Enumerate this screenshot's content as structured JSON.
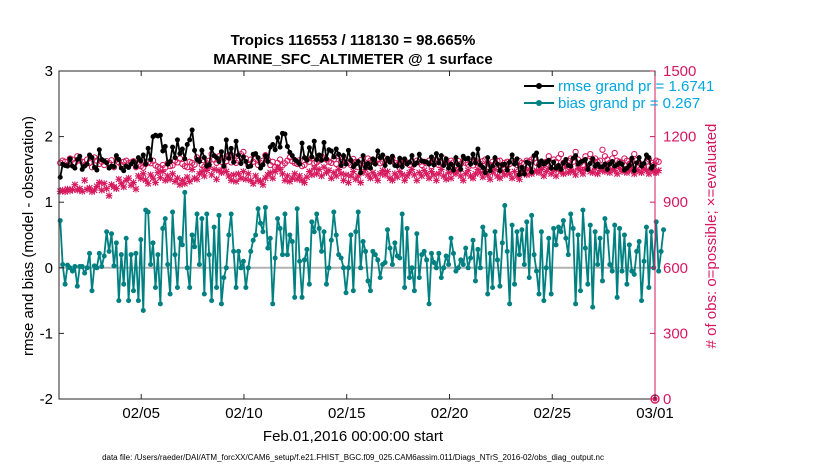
{
  "chart_data": {
    "type": "line",
    "title_line1": "Tropics 116553 / 118130 = 98.665%",
    "title_line2": "MARINE_SFC_ALTIMETER @ 1 surface",
    "xlabel": "Feb.01,2016 00:00:00 start",
    "ylabel_left": "rmse and bias (model - observation)",
    "ylabel_right": "# of obs: o=possible; ×=evaluated",
    "footer": "data file: /Users/raeder/DAI/ATM_forcXX/CAM6_setup/f.e21.FHIST_BGC.f09_025.CAM6assim.011/Diags_NTrS_2016-02/obs_diag_output.nc",
    "x_range": [
      "2016-02-01",
      "2016-03-01"
    ],
    "x_ticks": [
      "02/05",
      "02/10",
      "02/15",
      "02/20",
      "02/25",
      "03/01"
    ],
    "y_left": {
      "range": [
        -2,
        3
      ],
      "ticks": [
        "-2",
        "-1",
        "0",
        "1",
        "2",
        "3"
      ]
    },
    "y_right": {
      "range": [
        0,
        1500
      ],
      "ticks": [
        "0",
        "300",
        "600",
        "900",
        "1200",
        "1500"
      ]
    },
    "legend": {
      "position": "top-right",
      "entries": [
        "rmse grand pr = 1.6741",
        "bias grand pr = 0.267"
      ]
    },
    "colors": {
      "rmse": "#000000",
      "bias": "#008080",
      "obs": "#d6185d",
      "zero_line": "#b3b3b3"
    },
    "rmse": [
      1.38,
      1.58,
      1.56,
      1.55,
      1.66,
      1.55,
      1.52,
      1.65,
      1.7,
      1.5,
      1.55,
      1.58,
      1.72,
      1.68,
      1.53,
      1.49,
      1.8,
      1.65,
      1.63,
      1.6,
      1.52,
      1.55,
      1.54,
      1.71,
      1.65,
      1.52,
      1.48,
      1.55,
      1.53,
      1.58,
      1.62,
      1.54,
      1.68,
      1.63,
      1.72,
      1.58,
      1.82,
      1.65,
      2.0,
      2.02,
      2.01,
      2.02,
      1.78,
      1.85,
      1.58,
      1.62,
      1.84,
      1.68,
      1.95,
      1.74,
      1.81,
      1.66,
      1.88,
      1.95,
      2.1,
      1.79,
      1.65,
      1.62,
      1.79,
      1.68,
      1.55,
      1.57,
      1.82,
      1.71,
      1.68,
      1.62,
      1.77,
      1.55,
      1.95,
      1.67,
      1.82,
      1.61,
      1.93,
      1.72,
      1.59,
      1.69,
      1.62,
      1.54,
      1.55,
      1.73,
      1.74,
      1.68,
      1.52,
      1.57,
      1.71,
      1.62,
      1.84,
      1.88,
      1.8,
      1.98,
      1.84,
      2.05,
      2.04,
      1.85,
      1.76,
      1.71,
      1.65,
      1.62,
      1.58,
      1.9,
      1.68,
      1.64,
      1.83,
      1.69,
      1.93,
      1.65,
      1.72,
      1.64,
      1.91,
      1.66,
      1.8,
      1.78,
      1.69,
      1.81,
      1.73,
      1.56,
      1.71,
      1.58,
      1.79,
      1.64,
      1.54,
      1.58,
      1.62,
      1.45,
      1.71,
      1.53,
      1.59,
      1.52,
      1.66,
      1.58,
      1.78,
      1.68,
      1.72,
      1.56,
      1.67,
      1.61,
      1.7,
      1.56,
      1.55,
      1.67,
      1.54,
      1.66,
      1.58,
      1.61,
      1.71,
      1.57,
      1.6,
      1.73,
      1.63,
      1.62,
      1.61,
      1.58,
      1.69,
      1.57,
      1.74,
      1.6,
      1.71,
      1.56,
      1.66,
      1.52,
      1.58,
      1.49,
      1.68,
      1.57,
      1.5,
      1.7,
      1.66,
      1.67,
      1.58,
      1.73,
      1.6,
      1.81,
      1.57,
      1.53,
      1.45,
      1.68,
      1.48,
      1.55,
      1.68,
      1.58,
      1.48,
      1.57,
      1.58,
      1.49,
      1.61,
      1.72,
      1.58,
      1.66,
      1.42,
      1.53,
      1.43,
      1.61,
      1.59,
      1.46,
      1.71,
      1.75,
      1.56,
      1.63,
      1.58,
      1.61,
      1.64,
      1.52,
      1.61,
      1.52,
      1.56,
      1.5,
      1.6,
      1.65,
      1.56,
      1.55,
      1.67,
      1.71,
      1.58,
      1.61,
      1.63,
      1.65,
      1.5,
      1.59,
      1.66,
      1.55,
      1.58,
      1.54,
      1.54,
      1.58,
      1.5,
      1.58,
      1.62,
      1.55,
      1.57,
      1.6,
      1.58,
      1.49,
      1.52,
      1.56,
      1.67,
      1.48,
      1.6,
      1.68,
      1.55,
      1.59,
      1.72,
      1.68,
      1.52,
      1.55
    ],
    "bias": [
      0.72,
      0.05,
      -0.25,
      0.04,
      0.0,
      -0.05,
      0.02,
      -0.28,
      0.02,
      0.02,
      -0.08,
      0.0,
      0.22,
      -0.35,
      0.03,
      0.0,
      0.22,
      0.02,
      0.18,
      0.55,
      0.25,
      0.52,
      0.03,
      0.38,
      -0.5,
      0.2,
      -0.25,
      0.45,
      -0.5,
      0.2,
      -0.35,
      0.22,
      -0.5,
      0.43,
      -0.65,
      0.88,
      0.85,
      0.05,
      0.38,
      -0.3,
      0.2,
      -0.55,
      0.6,
      0.75,
      0.05,
      -0.4,
      0.85,
      0.2,
      -0.3,
      0.45,
      0.35,
      1.15,
      0.0,
      -0.3,
      0.5,
      0.32,
      0.82,
      0.05,
      0.75,
      -0.4,
      0.82,
      0.2,
      -0.5,
      0.62,
      -0.3,
      0.8,
      -0.55,
      -0.15,
      0.0,
      0.5,
      0.82,
      0.25,
      -0.3,
      0.25,
      0.0,
      0.1,
      -0.3,
      0.0,
      0.25,
      0.42,
      0.5,
      0.9,
      0.68,
      0.55,
      0.92,
      0.3,
      0.45,
      -0.55,
      0.15,
      0.75,
      0.6,
      0.2,
      0.82,
      0.2,
      0.5,
      0.4,
      -0.45,
      0.9,
      0.1,
      -0.45,
      0.12,
      0.28,
      -0.25,
      0.7,
      0.55,
      0.82,
      0.6,
      0.25,
      0.55,
      -0.25,
      0.0,
      0.42,
      0.85,
      0.5,
      0.2,
      0.15,
      0.0,
      -0.38,
      0.0,
      0.5,
      -0.35,
      0.55,
      0.85,
      0.0,
      0.4,
      0.25,
      -0.2,
      -0.35,
      0.25,
      0.2,
      0.12,
      -0.15,
      0.05,
      0.08,
      0.58,
      0.3,
      0.05,
      0.38,
      0.18,
      0.15,
      0.82,
      -0.3,
      0.6,
      -0.15,
      0.0,
      -0.35,
      0.52,
      -0.15,
      0.2,
      0.25,
      0.12,
      -0.55,
      0.22,
      0.08,
      0.0,
      0.22,
      -0.15,
      0.0,
      0.18,
      0.05,
      0.45,
      0.22,
      -0.05,
      0.0,
      0.12,
      0.05,
      0.3,
      0.0,
      0.15,
      0.42,
      -0.2,
      0.28,
      0.0,
      0.62,
      0.5,
      -0.4,
      0.22,
      -0.3,
      0.55,
      0.12,
      -0.28,
      0.38,
      0.95,
      0.25,
      -0.55,
      0.65,
      -0.25,
      0.55,
      0.2,
      0.58,
      0.05,
      0.7,
      -0.15,
      0.8,
      0.2,
      -0.05,
      -0.4,
      0.55,
      -0.5,
      0.0,
      0.45,
      -0.4,
      0.6,
      0.35,
      0.62,
      0.55,
      0.72,
      0.45,
      0.2,
      0.82,
      0.6,
      -0.55,
      0.5,
      -0.35,
      0.88,
      0.3,
      -0.25,
      0.65,
      -0.6,
      0.55,
      0.05,
      0.45,
      -0.2,
      0.75,
      0.55,
      0.05,
      -0.05,
      0.65,
      -0.45,
      0.6,
      -0.05,
      0.5,
      -0.25,
      0.35,
      -0.05,
      -0.1,
      0.25,
      0.4,
      -0.5,
      0.1,
      0.62,
      -0.3,
      0.55,
      0.0,
      0.7,
      -0.05,
      0.25,
      0.58
    ],
    "obs_possible": [
      1080,
      1090,
      1085,
      1070,
      1100,
      1095,
      1080,
      1110,
      1090,
      1085,
      1070,
      1095,
      1080,
      1060,
      1105,
      1090,
      1075,
      1085,
      1070,
      1088,
      1080,
      1092,
      1060,
      1095,
      1082,
      1070,
      1085,
      1090,
      1078,
      1082,
      1088,
      1060,
      1072,
      1065,
      1058,
      1075,
      1082,
      1078,
      1090,
      1068,
      1062,
      1055,
      1070,
      1058,
      1078,
      1065,
      1068,
      1090,
      1082,
      1100,
      1075,
      1065,
      1060,
      1085,
      1080,
      1072,
      1105,
      1095,
      1070,
      1062,
      1078,
      1090,
      1120,
      1095,
      1080,
      1110,
      1085,
      1100,
      1088,
      1115,
      1082,
      1110,
      1080,
      1090,
      1120,
      1130,
      1100,
      1070,
      1095,
      1085,
      1098,
      1070,
      1080,
      1090,
      1115,
      1095,
      1070,
      1085,
      1060,
      1080,
      1095,
      1068,
      1078,
      1090,
      1105,
      1088,
      1080,
      1075,
      1092,
      1065,
      1070,
      1095,
      1085,
      1100,
      1078,
      1082,
      1090,
      1110,
      1100,
      1095,
      1085,
      1080,
      1095,
      1075,
      1110,
      1085,
      1068,
      1092,
      1080,
      1070,
      1098,
      1085,
      1060,
      1092,
      1080,
      1070,
      1100,
      1090,
      1085,
      1080,
      1095,
      1078,
      1085,
      1100,
      1092,
      1088,
      1102,
      1080,
      1070,
      1085,
      1078,
      1092,
      1080,
      1070,
      1085,
      1075,
      1090,
      1082,
      1070,
      1085,
      1078,
      1090,
      1065,
      1085,
      1095,
      1070,
      1080,
      1100,
      1085,
      1078,
      1090,
      1082,
      1070,
      1088,
      1075,
      1090,
      1080,
      1072,
      1085,
      1068,
      1090,
      1080,
      1075,
      1088,
      1095,
      1078,
      1070,
      1085,
      1075,
      1088,
      1090,
      1070,
      1080,
      1085,
      1075,
      1090,
      1082,
      1070,
      1088,
      1080,
      1075,
      1090,
      1085,
      1095,
      1100,
      1080,
      1072,
      1060,
      1070,
      1085,
      1110,
      1080,
      1095,
      1085,
      1102,
      1120,
      1080,
      1075,
      1090,
      1100,
      1085,
      1130,
      1095,
      1080,
      1070,
      1110,
      1090,
      1120,
      1095,
      1100,
      1085,
      1090,
      1140,
      1110,
      1095,
      1080,
      1100,
      1125,
      1090,
      1085,
      1080,
      1100,
      1090,
      1075,
      1085,
      1120,
      1092,
      1080,
      1070,
      1060,
      1085,
      1095,
      1080,
      1070,
      1090,
      1085
    ],
    "obs_evaluated": [
      950,
      955,
      948,
      960,
      952,
      958,
      980,
      955,
      962,
      950,
      1000,
      958,
      965,
      948,
      955,
      972,
      990,
      955,
      985,
      962,
      930,
      980,
      970,
      962,
      1005,
      985,
      970,
      1000,
      1010,
      978,
      990,
      960,
      1020,
      1008,
      1030,
      1002,
      985,
      1025,
      1010,
      990,
      1035,
      1012,
      1040,
      1000,
      1020,
      1005,
      1030,
      995,
      1010,
      980,
      1000,
      985,
      1015,
      995,
      1050,
      1010,
      1005,
      1030,
      1040,
      1020,
      1045,
      1060,
      1025,
      1050,
      1005,
      1045,
      1035,
      1060,
      1040,
      1020,
      1000,
      1025,
      995,
      1030,
      1010,
      1040,
      1005,
      1030,
      1000,
      985,
      1020,
      1000,
      995,
      980,
      1010,
      1025,
      1035,
      1010,
      1040,
      1060,
      1050,
      1030,
      1000,
      1020,
      995,
      1010,
      1030,
      1005,
      1020,
      1000,
      990,
      1015,
      1040,
      1025,
      1055,
      1030,
      1050,
      1020,
      1060,
      1035,
      1045,
      1010,
      1035,
      1020,
      1050,
      1030,
      1000,
      1025,
      990,
      1020,
      1040,
      1005,
      1020,
      990,
      1035,
      1050,
      1025,
      1010,
      1035,
      1020,
      1000,
      1030,
      1045,
      1025,
      1040,
      1010,
      1000,
      1030,
      1015,
      1040,
      1025,
      1000,
      1020,
      1035,
      1050,
      1025,
      1000,
      1035,
      1020,
      1045,
      1030,
      1010,
      1040,
      1025,
      1000,
      1030,
      1050,
      1020,
      1005,
      1035,
      1010,
      1040,
      1030,
      1045,
      1020,
      1000,
      1030,
      1045,
      1020,
      1010,
      1030,
      1050,
      1035,
      1015,
      1040,
      1025,
      1005,
      1035,
      1050,
      1020,
      1010,
      1040,
      1025,
      1050,
      1030,
      1010,
      1040,
      1020,
      1005,
      1035,
      1045,
      1025,
      1050,
      1030,
      1040,
      1045,
      1035,
      1050,
      1020,
      1040,
      1055,
      1030,
      1045,
      1020,
      1050,
      1040,
      1030,
      1060,
      1035,
      1050,
      1040,
      1025,
      1055,
      1045,
      1030,
      1050,
      1060,
      1040,
      1035,
      1055,
      1030,
      1045,
      1050,
      1040,
      1055,
      1035,
      1050,
      1045,
      1030,
      1055,
      1040,
      1050,
      1035,
      1045,
      1055,
      1030,
      1050,
      1040,
      1035,
      1055,
      1045,
      1030,
      1050,
      1040,
      1035,
      1045
    ],
    "final_marker": {
      "x": "2016-03-01",
      "possible": 0,
      "evaluated": 0
    }
  }
}
